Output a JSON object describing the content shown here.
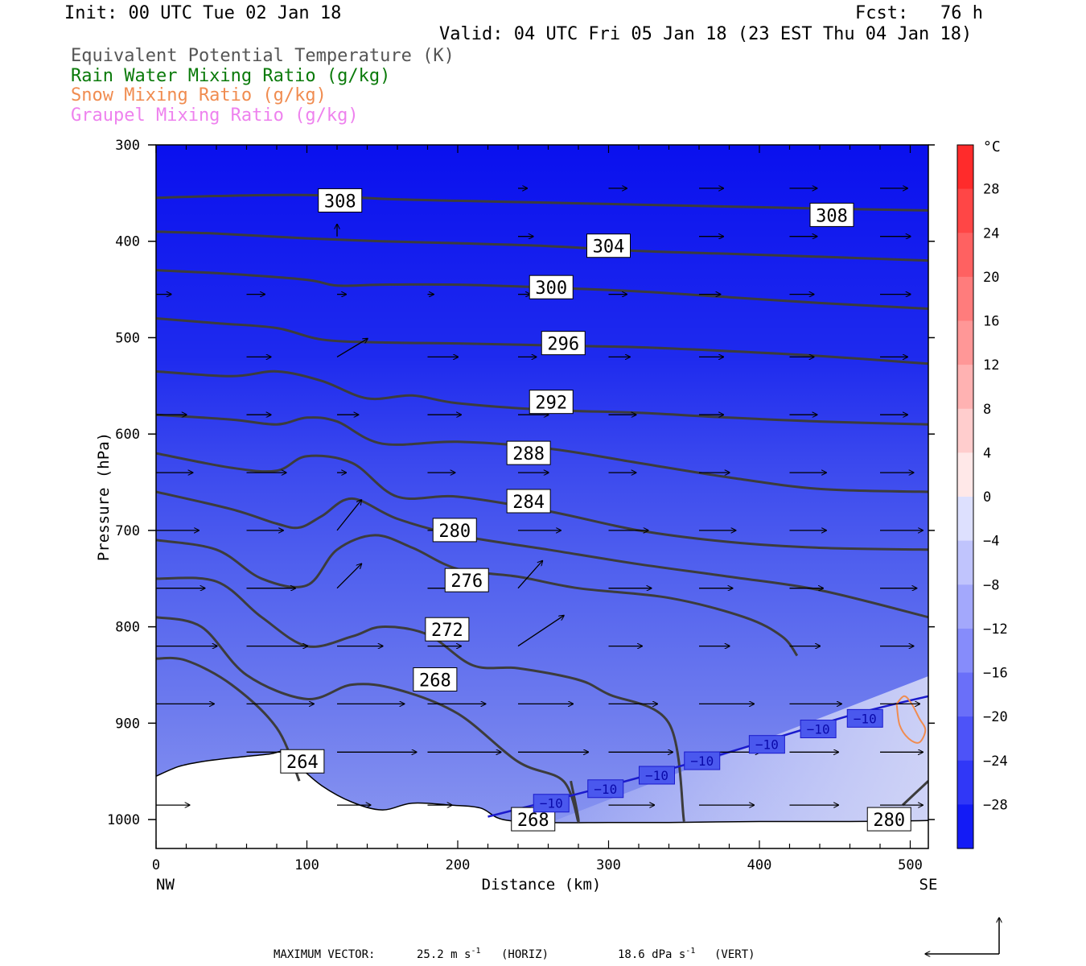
{
  "header": {
    "init": "Init: 00 UTC Tue 02 Jan 18",
    "fcst": "Fcst:   76 h",
    "valid": "Valid: 04 UTC Fri 05 Jan 18 (23 EST Thu 04 Jan 18)"
  },
  "legend": [
    {
      "text": "Equivalent Potential Temperature (K)",
      "color": "#555555"
    },
    {
      "text": "Rain Water Mixing Ratio (g/kg)",
      "color": "#0a7a0a"
    },
    {
      "text": "Snow Mixing Ratio (g/kg)",
      "color": "#f08c50"
    },
    {
      "text": "Graupel Mixing Ratio (g/kg)",
      "color": "#ee82ee"
    }
  ],
  "chart_data": {
    "type": "cross-section",
    "xlabel": "Distance (km)",
    "ylabel": "Pressure (hPa)",
    "xlim": [
      0,
      512
    ],
    "ylim": [
      1030,
      300
    ],
    "x_ticks": [
      0,
      100,
      200,
      300,
      400,
      500
    ],
    "y_ticks": [
      300,
      400,
      500,
      600,
      700,
      800,
      900,
      1000
    ],
    "x_end_labels": {
      "left": "NW",
      "right": "SE"
    },
    "colorbar": {
      "unit": "°C",
      "labels": [
        28,
        24,
        20,
        16,
        12,
        8,
        4,
        0,
        -4,
        -8,
        -12,
        -16,
        -20,
        -24,
        -28
      ],
      "min": -32,
      "max": 32,
      "step": 4
    },
    "theta_e_contours": [
      {
        "value": 308,
        "x": [
          0,
          40,
          100,
          150,
          200,
          260,
          320,
          380,
          440,
          512
        ],
        "p": [
          355,
          353,
          352,
          356,
          358,
          360,
          362,
          364,
          366,
          368
        ]
      },
      {
        "value": 304,
        "x": [
          0,
          40,
          100,
          150,
          200,
          260,
          320,
          380,
          440,
          512
        ],
        "p": [
          390,
          392,
          397,
          400,
          402,
          405,
          410,
          413,
          416,
          420
        ]
      },
      {
        "value": 300,
        "x": [
          0,
          50,
          100,
          120,
          150,
          200,
          260,
          320,
          380,
          440,
          512
        ],
        "p": [
          430,
          434,
          440,
          446,
          445,
          445,
          448,
          452,
          458,
          464,
          470
        ]
      },
      {
        "value": 296,
        "x": [
          0,
          40,
          80,
          110,
          150,
          200,
          260,
          320,
          380,
          440,
          512
        ],
        "p": [
          480,
          485,
          490,
          502,
          505,
          506,
          508,
          510,
          514,
          519,
          527
        ]
      },
      {
        "value": 292,
        "x": [
          0,
          50,
          80,
          110,
          140,
          170,
          200,
          260,
          320,
          380,
          440,
          512
        ],
        "p": [
          535,
          540,
          535,
          545,
          563,
          560,
          568,
          575,
          578,
          583,
          587,
          590
        ]
      },
      {
        "value": 288,
        "x": [
          0,
          50,
          80,
          100,
          120,
          150,
          200,
          260,
          320,
          380,
          440,
          512
        ],
        "p": [
          580,
          585,
          590,
          583,
          587,
          610,
          608,
          615,
          630,
          645,
          657,
          660
        ]
      },
      {
        "value": 284,
        "x": [
          0,
          50,
          80,
          100,
          130,
          160,
          200,
          260,
          320,
          380,
          440,
          512
        ],
        "p": [
          620,
          635,
          638,
          623,
          630,
          665,
          665,
          680,
          700,
          712,
          718,
          720
        ]
      },
      {
        "value": 280,
        "x": [
          0,
          50,
          80,
          95,
          110,
          130,
          160,
          200,
          260,
          320,
          380,
          440,
          512
        ],
        "p": [
          660,
          678,
          693,
          697,
          685,
          667,
          688,
          705,
          720,
          735,
          748,
          762,
          790
        ]
      },
      {
        "value": 276,
        "x": [
          0,
          40,
          70,
          100,
          120,
          145,
          170,
          200,
          240,
          280,
          340,
          390,
          415,
          425
        ],
        "p": [
          710,
          720,
          750,
          757,
          720,
          705,
          718,
          740,
          748,
          760,
          770,
          790,
          810,
          830
        ]
      },
      {
        "value": 272,
        "x": [
          0,
          40,
          70,
          100,
          130,
          150,
          180,
          210,
          240,
          280,
          300,
          340,
          350
        ],
        "p": [
          750,
          753,
          790,
          820,
          810,
          800,
          808,
          840,
          843,
          855,
          870,
          900,
          1002
        ]
      },
      {
        "value": 268,
        "x": [
          0,
          30,
          60,
          100,
          130,
          160,
          200,
          240,
          270,
          280,
          275
        ],
        "p": [
          790,
          800,
          850,
          875,
          860,
          865,
          890,
          940,
          960,
          1002,
          960
        ]
      },
      {
        "value": 264,
        "x": [
          0,
          20,
          50,
          80,
          95
        ],
        "p": [
          833,
          835,
          860,
          905,
          960
        ]
      },
      {
        "value": 280,
        "x": [
          495,
          512
        ],
        "p": [
          985,
          960
        ]
      }
    ],
    "contour_labels": [
      {
        "text": "308",
        "x": 122,
        "p": 358
      },
      {
        "text": "308",
        "x": 448,
        "p": 373
      },
      {
        "text": "304",
        "x": 300,
        "p": 405
      },
      {
        "text": "300",
        "x": 262,
        "p": 448
      },
      {
        "text": "296",
        "x": 270,
        "p": 506
      },
      {
        "text": "292",
        "x": 262,
        "p": 567
      },
      {
        "text": "288",
        "x": 247,
        "p": 620
      },
      {
        "text": "284",
        "x": 247,
        "p": 670
      },
      {
        "text": "280",
        "x": 198,
        "p": 700
      },
      {
        "text": "276",
        "x": 206,
        "p": 752
      },
      {
        "text": "272",
        "x": 193,
        "p": 803
      },
      {
        "text": "268",
        "x": 185,
        "p": 855
      },
      {
        "text": "264",
        "x": 97,
        "p": 940
      },
      {
        "text": "268",
        "x": 250,
        "p": 1000
      },
      {
        "text": "280",
        "x": 486,
        "p": 1000
      }
    ],
    "isotherm_neg10": {
      "x": [
        220,
        300,
        380,
        460,
        512
      ],
      "p": [
        997,
        965,
        930,
        892,
        872
      ]
    },
    "isotherm_labels": [
      {
        "text": "−10",
        "x": 262,
        "p": 983
      },
      {
        "text": "−10",
        "x": 298,
        "p": 968
      },
      {
        "text": "−10",
        "x": 332,
        "p": 954
      },
      {
        "text": "−10",
        "x": 362,
        "p": 939
      },
      {
        "text": "−10",
        "x": 405,
        "p": 922
      },
      {
        "text": "−10",
        "x": 439,
        "p": 906
      },
      {
        "text": "−10",
        "x": 470,
        "p": 895
      }
    ],
    "snow_contour": {
      "x": [
        491,
        496,
        501,
        506,
        510,
        506,
        499,
        493,
        491
      ],
      "p": [
        880,
        872,
        880,
        895,
        907,
        920,
        916,
        902,
        880
      ]
    },
    "terrain": {
      "x": [
        0,
        15,
        30,
        50,
        75,
        85,
        95,
        110,
        130,
        150,
        170,
        195,
        215,
        230,
        260,
        300,
        340,
        400,
        460,
        512
      ],
      "p": [
        955,
        945,
        940,
        936,
        932,
        930,
        945,
        965,
        982,
        990,
        983,
        985,
        988,
        1000,
        1003,
        1003,
        1003,
        1002,
        1002,
        1001
      ]
    },
    "vectors": {
      "x0": [
        0,
        60,
        120,
        180,
        240,
        300,
        360,
        420,
        480
      ],
      "p0": [
        345,
        395,
        455,
        520,
        580,
        640,
        700,
        760,
        820,
        880,
        930,
        985
      ],
      "u": [
        [
          0,
          0,
          0,
          0,
          0.3,
          0.6,
          0.8,
          0.9,
          0.9
        ],
        [
          0,
          0,
          0,
          0,
          0.5,
          0.7,
          0.8,
          0.9,
          1.0
        ],
        [
          0.5,
          0.6,
          0.3,
          0.2,
          0.4,
          0.6,
          0.7,
          0.8,
          1.0
        ],
        [
          0,
          0.8,
          1.0,
          1.0,
          0.6,
          0.7,
          0.8,
          0.8,
          0.9
        ],
        [
          1.0,
          0.8,
          0.7,
          1.1,
          1.0,
          0.9,
          0.8,
          0.9,
          0.9
        ],
        [
          1.2,
          1.3,
          0.3,
          0.9,
          1.0,
          0.9,
          1.0,
          1.2,
          1.1
        ],
        [
          1.4,
          1.2,
          0.8,
          0.8,
          1.4,
          1.3,
          1.2,
          1.2,
          1.4
        ],
        [
          1.6,
          1.6,
          0.8,
          0.9,
          0.8,
          1.4,
          1.1,
          1.1,
          1.2
        ],
        [
          2.0,
          2.0,
          1.5,
          1.1,
          1.5,
          1.1,
          1.0,
          1.0,
          1.1
        ],
        [
          1.9,
          2.2,
          2.2,
          1.9,
          1.8,
          1.6,
          1.8,
          1.7,
          1.3
        ],
        [
          0,
          1.3,
          2.6,
          2.4,
          2.3,
          2.1,
          2.0,
          1.6,
          1.4
        ],
        [
          1.1,
          0,
          1.1,
          0.8,
          0,
          1.5,
          1.8,
          1.6,
          1.4
        ]
      ],
      "w": [
        [
          0,
          0,
          0,
          0,
          0,
          0,
          0,
          0,
          0
        ],
        [
          0,
          0,
          0.4,
          0,
          0,
          0,
          0,
          0,
          0
        ],
        [
          0,
          0,
          0,
          0,
          0,
          0,
          0,
          0,
          0
        ],
        [
          0,
          0,
          0.6,
          0,
          0,
          0,
          0,
          0,
          0
        ],
        [
          0,
          0,
          0,
          0,
          0,
          0,
          0,
          0,
          0
        ],
        [
          0,
          0,
          0,
          0,
          0,
          0,
          0,
          0,
          0
        ],
        [
          0,
          0,
          1.0,
          0,
          0,
          0,
          0,
          0,
          0
        ],
        [
          0,
          0,
          0.8,
          0,
          0.9,
          0,
          0,
          0,
          0
        ],
        [
          0,
          0,
          0,
          0,
          1.0,
          0,
          0,
          0,
          0
        ],
        [
          0,
          0,
          0,
          0,
          0,
          0,
          0,
          0,
          0
        ],
        [
          0,
          0,
          0,
          0,
          0,
          0,
          0,
          0,
          0
        ],
        [
          0,
          0,
          0,
          0,
          0,
          0,
          0,
          0,
          0
        ]
      ]
    },
    "footer": {
      "label": "MAXIMUM VECTOR:",
      "horiz_value": "25.2 m s",
      "horiz_exp": "-1",
      "horiz_tag": "(HORIZ)",
      "vert_value": "18.6 dPa s",
      "vert_exp": "-1",
      "vert_tag": "(VERT)"
    },
    "colors": {
      "contour": "#3c3c3c",
      "isotherm": "#1a1acc",
      "snow": "#f08c50",
      "arrow": "#000000",
      "bg_top": "#0a10ee"
    }
  }
}
